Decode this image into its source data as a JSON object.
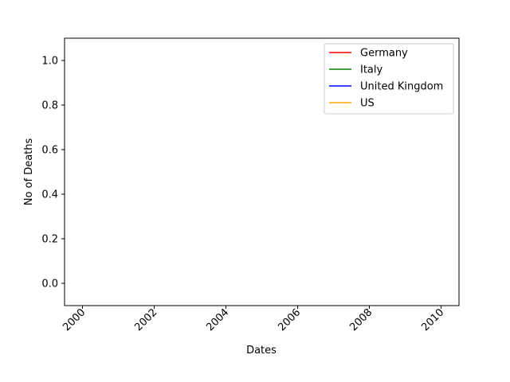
{
  "chart_data": {
    "type": "line",
    "title": "",
    "xlabel": "Dates",
    "ylabel": "No of Deaths",
    "xlim": [
      1999.5,
      2010.5
    ],
    "ylim": [
      -0.1,
      1.1
    ],
    "x_ticks": [
      2000,
      2002,
      2004,
      2006,
      2008,
      2010
    ],
    "y_ticks": [
      0.0,
      0.2,
      0.4,
      0.6,
      0.8,
      1.0
    ],
    "y_tick_labels": [
      "0.0",
      "0.2",
      "0.4",
      "0.6",
      "0.8",
      "1.0"
    ],
    "grid": false,
    "legend_position": "top-right",
    "series": [
      {
        "name": "Germany",
        "color": "#ff0000",
        "x": [],
        "values": []
      },
      {
        "name": "Italy",
        "color": "#008000",
        "x": [],
        "values": []
      },
      {
        "name": "United Kingdom",
        "color": "#0000ff",
        "x": [],
        "values": []
      },
      {
        "name": "US",
        "color": "#ffa500",
        "x": [],
        "values": []
      }
    ]
  }
}
